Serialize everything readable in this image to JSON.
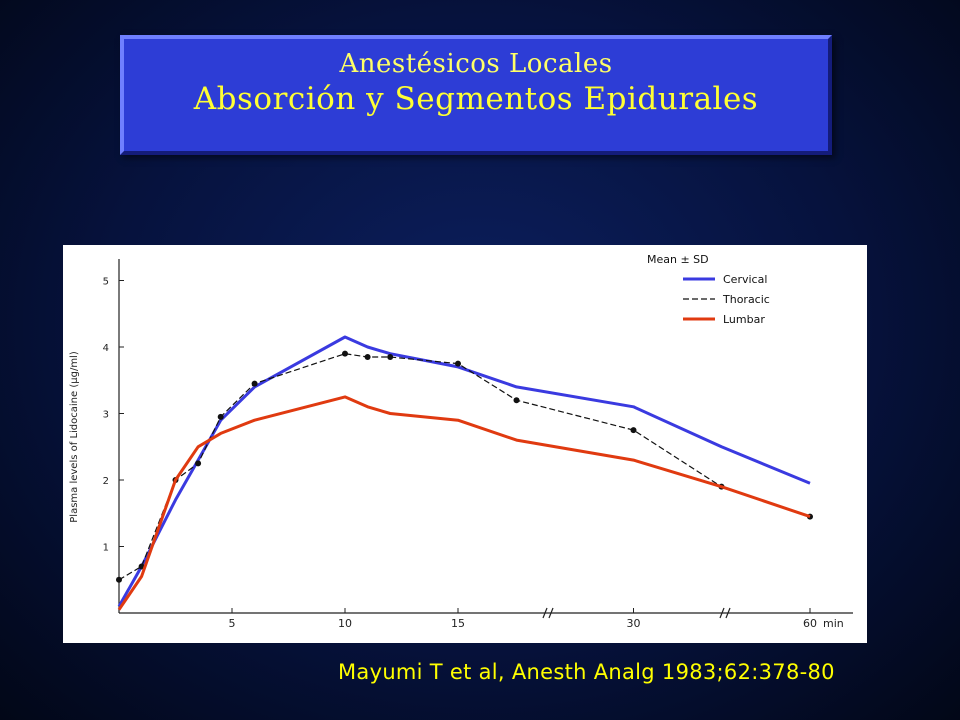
{
  "slide": {
    "title_line1": "Anestésicos Locales",
    "title_line2": "Absorción y Segmentos Epidurales",
    "citation": "Mayumi T et al, Anesth Analg 1983;62:378-80"
  },
  "chart_data": {
    "type": "line",
    "ylabel": "Plasma levels of Lidocaine (µg/ml)",
    "xlabel": "min",
    "x_ticks": [
      "5",
      "10",
      "15",
      "30",
      "60"
    ],
    "y_ticks": [
      "1",
      "2",
      "3",
      "4",
      "5"
    ],
    "ylim": [
      0,
      5.5
    ],
    "legend_title": "Mean ± SD",
    "legend_position": "top-right",
    "x": [
      0,
      1,
      2.5,
      3.5,
      4.5,
      6,
      10,
      11,
      12,
      15,
      20,
      30,
      45,
      60
    ],
    "series": [
      {
        "name": "Cervical",
        "color": "#3a3ae0",
        "values": [
          0.1,
          0.7,
          1.7,
          2.3,
          2.9,
          3.4,
          4.15,
          4.0,
          3.9,
          3.7,
          3.4,
          3.1,
          2.5,
          1.95
        ]
      },
      {
        "name": "Thoracic",
        "color": "#111111",
        "values": [
          0.5,
          0.7,
          2.0,
          2.25,
          2.95,
          3.45,
          3.9,
          3.85,
          3.85,
          3.75,
          3.2,
          2.75,
          1.9,
          1.45
        ]
      },
      {
        "name": "Lumbar",
        "color": "#e03a10",
        "values": [
          0.05,
          0.55,
          2.0,
          2.5,
          2.7,
          2.9,
          3.25,
          3.1,
          3.0,
          2.9,
          2.6,
          2.3,
          1.9,
          1.45
        ]
      }
    ]
  }
}
